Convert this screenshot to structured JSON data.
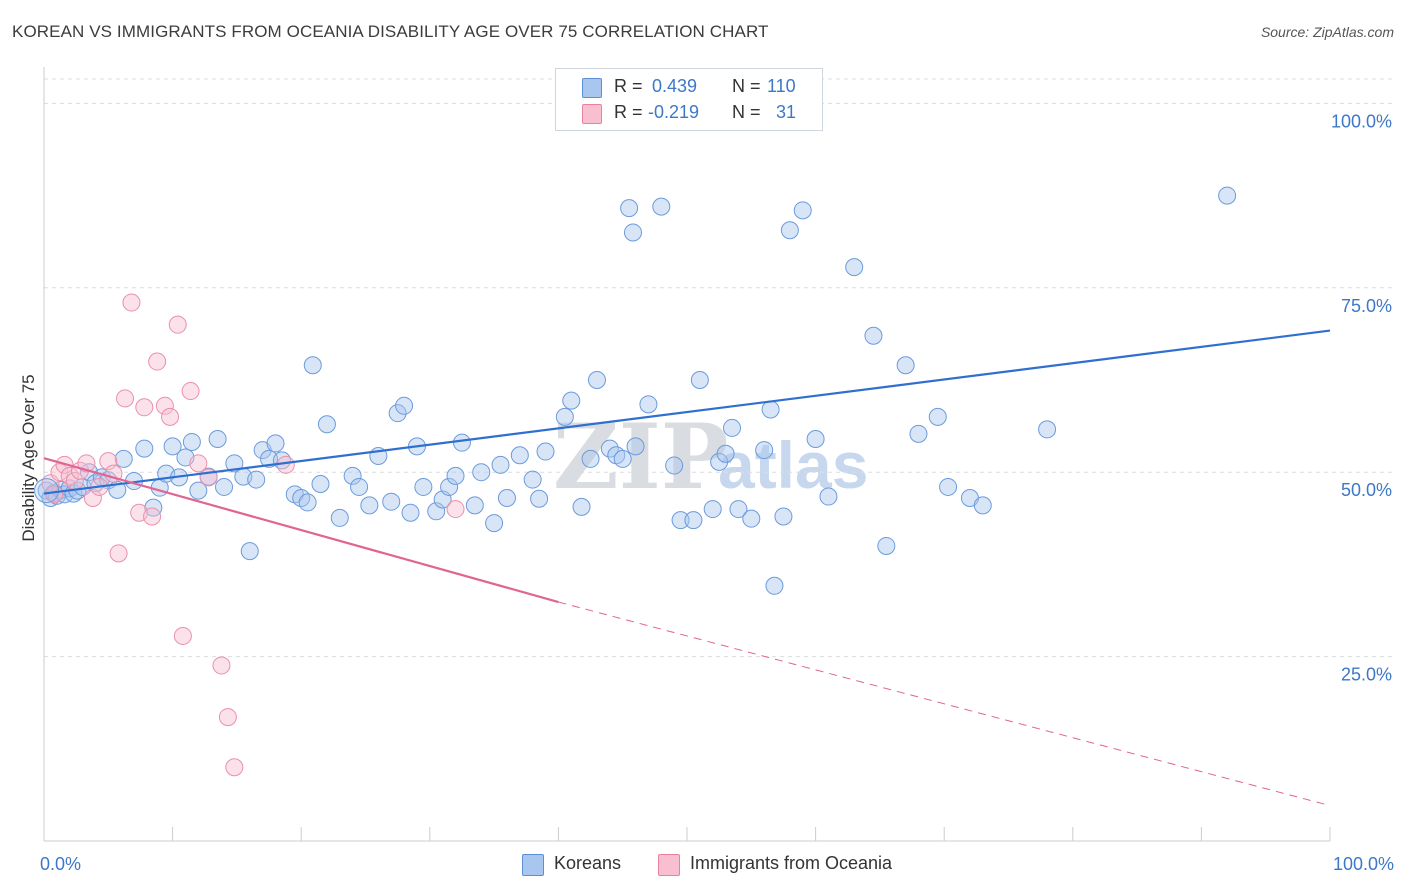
{
  "title": "KOREAN VS IMMIGRANTS FROM OCEANIA DISABILITY AGE OVER 75 CORRELATION CHART",
  "source": "Source: ZipAtlas.com",
  "watermark": {
    "left": "ZIP",
    "right": "atlas"
  },
  "legend_stats": [
    {
      "r_label": "R =",
      "r_value": "0.439",
      "n_label": "N =",
      "n_value": "110",
      "color": "#a9c6ee",
      "border": "#5d8fd6"
    },
    {
      "r_label": "R =",
      "r_value": "-0.219",
      "n_label": "N =",
      "n_value": "31",
      "color": "#f7bfd0",
      "border": "#e8829f"
    }
  ],
  "bottom_legend": [
    {
      "label": "Koreans",
      "color": "#a9c6ee",
      "border": "#5d8fd6"
    },
    {
      "label": "Immigrants from Oceania",
      "color": "#f7bfd0",
      "border": "#e8829f"
    }
  ],
  "chart_data": {
    "type": "scatter",
    "title": "KOREAN VS IMMIGRANTS FROM OCEANIA DISABILITY AGE OVER 75 CORRELATION CHART",
    "xlabel": "",
    "ylabel": "Disability Age Over 75",
    "xlim": [
      0,
      100
    ],
    "ylim": [
      0,
      100
    ],
    "x_tick_labels": [
      "0.0%",
      "100.0%"
    ],
    "y_tick_labels": [
      "100.0%",
      "75.0%",
      "50.0%",
      "25.0%"
    ],
    "y_ticks": [
      100,
      75,
      50,
      25
    ],
    "grid": true,
    "legend_position": "top-center",
    "colors": {
      "koreans": "#5d8fd6",
      "oceania": "#e8829f"
    },
    "series": [
      {
        "name": "Koreans",
        "points": [
          [
            0.2,
            47.5
          ],
          [
            0.5,
            46.5
          ],
          [
            0.8,
            47.2
          ],
          [
            1.0,
            46.8
          ],
          [
            1.3,
            47.6
          ],
          [
            1.6,
            47.0
          ],
          [
            2.0,
            47.8
          ],
          [
            2.3,
            47.1
          ],
          [
            2.6,
            47.5
          ],
          [
            3.0,
            48.0
          ],
          [
            3.5,
            50.0
          ],
          [
            4.0,
            48.5
          ],
          [
            4.5,
            49.3
          ],
          [
            5.0,
            48.9
          ],
          [
            5.7,
            47.6
          ],
          [
            6.2,
            51.8
          ],
          [
            7.0,
            48.8
          ],
          [
            7.8,
            53.2
          ],
          [
            8.5,
            45.2
          ],
          [
            9.0,
            47.9
          ],
          [
            9.5,
            49.8
          ],
          [
            10.0,
            53.5
          ],
          [
            10.5,
            49.3
          ],
          [
            11.0,
            52.0
          ],
          [
            11.5,
            54.1
          ],
          [
            12.0,
            47.5
          ],
          [
            12.8,
            49.4
          ],
          [
            13.5,
            54.5
          ],
          [
            14.0,
            48.0
          ],
          [
            14.8,
            51.2
          ],
          [
            15.5,
            49.4
          ],
          [
            16.0,
            39.3
          ],
          [
            16.5,
            49.0
          ],
          [
            17.0,
            53.0
          ],
          [
            17.5,
            51.8
          ],
          [
            18.0,
            53.9
          ],
          [
            18.5,
            51.6
          ],
          [
            19.5,
            47.0
          ],
          [
            20.0,
            46.5
          ],
          [
            20.5,
            45.9
          ],
          [
            20.9,
            64.5
          ],
          [
            21.5,
            48.4
          ],
          [
            22.0,
            56.5
          ],
          [
            23.0,
            43.8
          ],
          [
            24.0,
            49.5
          ],
          [
            24.5,
            48.0
          ],
          [
            25.3,
            45.5
          ],
          [
            26.0,
            52.2
          ],
          [
            27.0,
            46.0
          ],
          [
            27.5,
            58.0
          ],
          [
            28.0,
            59.0
          ],
          [
            28.5,
            44.5
          ],
          [
            29.0,
            53.5
          ],
          [
            29.5,
            48.0
          ],
          [
            30.5,
            44.7
          ],
          [
            31.0,
            46.3
          ],
          [
            31.5,
            48.0
          ],
          [
            32.0,
            49.5
          ],
          [
            32.5,
            54.0
          ],
          [
            33.5,
            45.5
          ],
          [
            34.0,
            50.0
          ],
          [
            35.0,
            43.1
          ],
          [
            35.5,
            51.0
          ],
          [
            36.0,
            46.5
          ],
          [
            37.0,
            52.3
          ],
          [
            38.0,
            49.0
          ],
          [
            38.5,
            46.4
          ],
          [
            39.0,
            52.8
          ],
          [
            40.5,
            57.5
          ],
          [
            41.0,
            59.7
          ],
          [
            41.8,
            45.3
          ],
          [
            42.5,
            51.8
          ],
          [
            43.0,
            62.5
          ],
          [
            44.0,
            53.2
          ],
          [
            44.5,
            52.3
          ],
          [
            45.0,
            51.8
          ],
          [
            45.5,
            85.8
          ],
          [
            45.8,
            82.5
          ],
          [
            46.0,
            53.5
          ],
          [
            47.0,
            59.2
          ],
          [
            48.0,
            86.0
          ],
          [
            49.0,
            50.9
          ],
          [
            49.5,
            43.5
          ],
          [
            50.5,
            43.5
          ],
          [
            51.0,
            62.5
          ],
          [
            52.0,
            45.0
          ],
          [
            52.5,
            51.4
          ],
          [
            53.0,
            52.5
          ],
          [
            53.5,
            56.0
          ],
          [
            54.0,
            45.0
          ],
          [
            55.0,
            43.7
          ],
          [
            56.0,
            53.0
          ],
          [
            56.5,
            58.5
          ],
          [
            56.8,
            34.6
          ],
          [
            57.5,
            44.0
          ],
          [
            58.0,
            82.8
          ],
          [
            59.0,
            85.5
          ],
          [
            60.0,
            54.5
          ],
          [
            61.0,
            46.7
          ],
          [
            63.0,
            77.8
          ],
          [
            64.5,
            68.5
          ],
          [
            65.5,
            40.0
          ],
          [
            67.0,
            64.5
          ],
          [
            68.0,
            55.2
          ],
          [
            69.5,
            57.5
          ],
          [
            70.3,
            48.0
          ],
          [
            72.0,
            46.5
          ],
          [
            73.0,
            45.5
          ],
          [
            78.0,
            55.8
          ],
          [
            92.0,
            87.5
          ]
        ]
      },
      {
        "name": "Immigrants from Oceania",
        "points": [
          [
            0.5,
            48.5
          ],
          [
            0.8,
            47.0
          ],
          [
            1.2,
            50.0
          ],
          [
            1.6,
            51.0
          ],
          [
            2.0,
            49.5
          ],
          [
            2.4,
            48.8
          ],
          [
            2.8,
            50.2
          ],
          [
            3.3,
            51.2
          ],
          [
            3.8,
            46.5
          ],
          [
            4.3,
            48.0
          ],
          [
            5.0,
            51.5
          ],
          [
            5.4,
            49.8
          ],
          [
            5.8,
            39.0
          ],
          [
            6.3,
            60.0
          ],
          [
            6.8,
            73.0
          ],
          [
            7.4,
            44.5
          ],
          [
            7.8,
            58.8
          ],
          [
            8.4,
            44.0
          ],
          [
            8.8,
            65.0
          ],
          [
            9.4,
            59.0
          ],
          [
            9.8,
            57.5
          ],
          [
            10.4,
            70.0
          ],
          [
            10.8,
            27.8
          ],
          [
            11.4,
            61.0
          ],
          [
            12.0,
            51.2
          ],
          [
            12.8,
            49.3
          ],
          [
            13.8,
            23.8
          ],
          [
            14.3,
            16.8
          ],
          [
            14.8,
            10.0
          ],
          [
            18.8,
            51.0
          ],
          [
            32.0,
            45.0
          ]
        ]
      }
    ],
    "trend_lines": [
      {
        "series": "Koreans",
        "from": [
          0,
          47.1
        ],
        "to": [
          100,
          69.2
        ],
        "style": "solid"
      },
      {
        "series": "Immigrants from Oceania",
        "from": [
          0,
          51.9
        ],
        "to": [
          40,
          32.4
        ],
        "style": "solid"
      },
      {
        "series": "Immigrants from Oceania",
        "from": [
          40,
          32.4
        ],
        "to": [
          100,
          4.8
        ],
        "style": "dashed"
      }
    ]
  }
}
